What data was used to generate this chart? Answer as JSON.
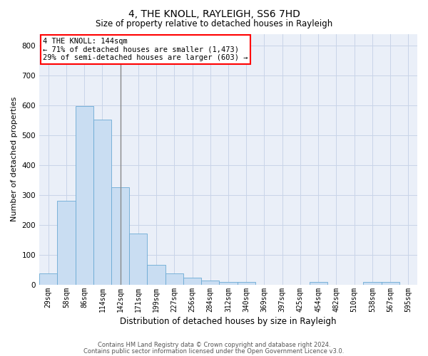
{
  "title": "4, THE KNOLL, RAYLEIGH, SS6 7HD",
  "subtitle": "Size of property relative to detached houses in Rayleigh",
  "xlabel": "Distribution of detached houses by size in Rayleigh",
  "ylabel": "Number of detached properties",
  "categories": [
    "29sqm",
    "58sqm",
    "86sqm",
    "114sqm",
    "142sqm",
    "171sqm",
    "199sqm",
    "227sqm",
    "256sqm",
    "284sqm",
    "312sqm",
    "340sqm",
    "369sqm",
    "397sqm",
    "425sqm",
    "454sqm",
    "482sqm",
    "510sqm",
    "538sqm",
    "567sqm",
    "595sqm"
  ],
  "values": [
    38,
    280,
    597,
    553,
    325,
    170,
    65,
    38,
    22,
    12,
    9,
    9,
    0,
    0,
    0,
    8,
    0,
    0,
    9,
    9,
    0
  ],
  "bar_color": "#c9ddf2",
  "bar_edge_color": "#6aaad4",
  "property_line_index": 4,
  "annotation_line1": "4 THE KNOLL: 144sqm",
  "annotation_line2": "← 71% of detached houses are smaller (1,473)",
  "annotation_line3": "29% of semi-detached houses are larger (603) →",
  "annotation_box_color": "white",
  "annotation_box_edge": "red",
  "ylim": [
    0,
    840
  ],
  "yticks": [
    0,
    100,
    200,
    300,
    400,
    500,
    600,
    700,
    800
  ],
  "grid_color": "#c8d4e8",
  "bg_color": "#eaeff8",
  "vline_color": "#888888",
  "title_fontsize": 10,
  "subtitle_fontsize": 8.5,
  "ylabel_fontsize": 8,
  "xlabel_fontsize": 8.5,
  "tick_fontsize": 7,
  "ann_fontsize": 7.5,
  "footer1": "Contains HM Land Registry data © Crown copyright and database right 2024.",
  "footer2": "Contains public sector information licensed under the Open Government Licence v3.0.",
  "footer_fontsize": 6.0
}
